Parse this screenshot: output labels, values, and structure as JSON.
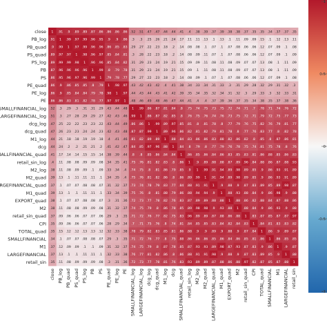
{
  "chart_data": {
    "type": "heatmap",
    "variables": [
      "close",
      "PB_log",
      "PB_quad",
      "PS_quad",
      "PS_log",
      "PB",
      "PS",
      "PE_quad",
      "PE_log",
      "PE",
      "SMALLFINANCIAL_log",
      "LARGEFINANCIAL_log",
      "dcg_log",
      "dcg_quad",
      "M1_log",
      "dcg",
      "SMALLFINANCIAL_quad",
      "retail_sin_log",
      "M2_log",
      "M2_quad",
      "LARGEFINANCIAL_quad",
      "M1_quad",
      "EXPORT_quad",
      "M2",
      "retail_sin_quad",
      "CPI",
      "TOTAL_quad",
      "SMALLFINANCIAL",
      "M1",
      "LARGEFINANCIAL",
      "retail_sin"
    ],
    "row_labels": [
      "close",
      "PB_log",
      "PB_quad",
      "PS_quad",
      "PS_log",
      "PB",
      "PS",
      "PE_quad",
      "PE_log",
      "PE",
      "SMALLFINANCIAL_log",
      "LARGEFINANCIAL_log",
      "dcg_log",
      "dcg_quad",
      "M1_log",
      "dcg",
      "SMALLFINANCIAL_quad",
      "retail_sin_log",
      "M2_log",
      "M2_quad",
      "LARGEFINANCIAL_quad",
      "M1_quad",
      "EXPORT_quad",
      "M2",
      "retail_sin_quad",
      "CPI",
      "TOTAL_quad",
      "SMALLFINANCIAL",
      "M1",
      "LARGEFINANCIAL",
      "retail_sin"
    ],
    "col_labels": [
      "close",
      "PB_log",
      "PB_quad",
      "PS_quad",
      "PS_log",
      "PB",
      "PS",
      "PE_quad",
      "PE_log",
      "PE",
      "SMALLFINANCIAL_log",
      "LARGEFINANCIAL_log",
      "dcg_log",
      "dcg_quad",
      "M1_log",
      "dcg",
      "SMALLFINANCIAL_quad",
      "retail_sin_log",
      "M2_log",
      "M2_quad",
      "LARGEFINANCIAL_quad",
      "M1_quad",
      "EXPORT_quad",
      "M2",
      "retail_sin_quad",
      "CPI",
      "TOTAL_quad",
      "SMALLFINANCIAL",
      "M1",
      "LARGEFINANCIAL",
      "retail_sin"
    ],
    "value_range": [
      -1,
      1
    ],
    "colormap": {
      "low": "#2166ac",
      "mid": "#f7f7f7",
      "high": "#b2182b"
    },
    "colorbar_ticks": [
      "1",
      "0.5",
      "0",
      "-0.5",
      "-1"
    ],
    "annotations": true,
    "values": [
      [
        1,
        0.91,
        0.9,
        0.89,
        0.89,
        0.87,
        0.86,
        0.86,
        0.86,
        0.86,
        0.52,
        0.51,
        0.47,
        0.47,
        0.44,
        0.44,
        0.41,
        0.4,
        0.38,
        0.39,
        0.37,
        0.39,
        0.38,
        0.38,
        0.37,
        0.35,
        0.35,
        0.34,
        0.37,
        0.37,
        0.35
      ],
      [
        0.91,
        1,
        0.99,
        0.97,
        0.99,
        0.96,
        0.95,
        0.9,
        0.9,
        0.86,
        0.3,
        0.3,
        0.25,
        0.26,
        0.21,
        0.24,
        0.17,
        0.11,
        0.11,
        0.13,
        0.1,
        0.13,
        0.1,
        0.11,
        0.09,
        0.09,
        0.15,
        0.1,
        0.12,
        0.13,
        0.11
      ],
      [
        0.9,
        0.99,
        1,
        0.97,
        0.99,
        0.96,
        0.96,
        0.86,
        0.85,
        0.83,
        0.29,
        0.27,
        0.22,
        0.23,
        0.18,
        0.2,
        0.14,
        0.08,
        0.08,
        0.1,
        0.07,
        0.1,
        0.07,
        0.08,
        0.06,
        0.06,
        0.12,
        0.07,
        0.09,
        0.1,
        0.08
      ],
      [
        0.89,
        0.97,
        0.97,
        1,
        0.98,
        0.96,
        0.97,
        0.85,
        0.84,
        0.81,
        0.3,
        0.28,
        0.22,
        0.23,
        0.18,
        0.2,
        0.14,
        0.08,
        0.09,
        0.11,
        0.07,
        0.1,
        0.07,
        0.08,
        0.06,
        0.06,
        0.12,
        0.07,
        0.09,
        0.1,
        0.09
      ],
      [
        0.89,
        0.99,
        0.99,
        0.98,
        1,
        0.96,
        0.96,
        0.85,
        0.84,
        0.82,
        0.31,
        0.29,
        0.23,
        0.24,
        0.19,
        0.21,
        0.15,
        0.09,
        0.09,
        0.11,
        0.08,
        0.11,
        0.08,
        0.09,
        0.07,
        0.07,
        0.13,
        0.08,
        0.1,
        0.11,
        0.09
      ],
      [
        0.87,
        0.96,
        0.96,
        0.96,
        0.96,
        1,
        0.99,
        0.8,
        0.79,
        0.78,
        0.31,
        0.29,
        0.23,
        0.24,
        0.19,
        0.21,
        0.15,
        0.09,
        0.1,
        0.11,
        0.08,
        0.11,
        0.08,
        0.09,
        0.07,
        0.07,
        0.13,
        0.08,
        0.1,
        0.11,
        0.09
      ],
      [
        0.86,
        0.95,
        0.96,
        0.97,
        0.96,
        0.99,
        1,
        0.79,
        0.78,
        0.77,
        0.29,
        0.27,
        0.22,
        0.23,
        0.18,
        0.2,
        0.14,
        0.08,
        0.09,
        0.1,
        0.07,
        0.1,
        0.07,
        0.08,
        0.06,
        0.06,
        0.12,
        0.07,
        0.09,
        0.1,
        0.08
      ],
      [
        0.86,
        0.9,
        0.86,
        0.85,
        0.85,
        0.8,
        0.79,
        1,
        0.98,
        0.97,
        0.43,
        0.42,
        0.43,
        0.42,
        0.4,
        0.41,
        0.38,
        0.34,
        0.33,
        0.34,
        0.31,
        0.33,
        0.3,
        0.31,
        0.29,
        0.28,
        0.32,
        0.29,
        0.31,
        0.32,
        0.3
      ],
      [
        0.86,
        0.9,
        0.85,
        0.84,
        0.84,
        0.79,
        0.78,
        0.98,
        1,
        0.97,
        0.44,
        0.43,
        0.44,
        0.43,
        0.41,
        0.42,
        0.39,
        0.35,
        0.34,
        0.35,
        0.32,
        0.34,
        0.31,
        0.32,
        0.3,
        0.29,
        0.33,
        0.3,
        0.32,
        0.33,
        0.31
      ],
      [
        0.86,
        0.86,
        0.83,
        0.81,
        0.82,
        0.78,
        0.77,
        0.97,
        0.97,
        1,
        0.48,
        0.46,
        0.49,
        0.48,
        0.46,
        0.47,
        0.44,
        0.41,
        0.4,
        0.4,
        0.37,
        0.39,
        0.36,
        0.37,
        0.35,
        0.34,
        0.38,
        0.35,
        0.37,
        0.38,
        0.36
      ],
      [
        0.52,
        0.3,
        0.29,
        0.3,
        0.31,
        0.31,
        0.29,
        0.43,
        0.44,
        0.48,
        1,
        0.99,
        0.86,
        0.87,
        0.81,
        0.84,
        0.8,
        0.75,
        0.74,
        0.75,
        0.73,
        0.75,
        0.72,
        0.74,
        0.71,
        0.7,
        0.78,
        0.71,
        0.74,
        0.76,
        0.72
      ],
      [
        0.51,
        0.3,
        0.27,
        0.28,
        0.29,
        0.29,
        0.27,
        0.42,
        0.43,
        0.46,
        0.99,
        1,
        0.86,
        0.87,
        0.82,
        0.85,
        0.8,
        0.76,
        0.75,
        0.76,
        0.74,
        0.76,
        0.73,
        0.75,
        0.72,
        0.71,
        0.79,
        0.72,
        0.75,
        0.77,
        0.73
      ],
      [
        0.47,
        0.25,
        0.22,
        0.22,
        0.23,
        0.23,
        0.22,
        0.43,
        0.44,
        0.49,
        0.86,
        0.86,
        1,
        0.99,
        0.89,
        0.97,
        0.85,
        0.81,
        0.8,
        0.81,
        0.78,
        0.8,
        0.77,
        0.79,
        0.76,
        0.75,
        0.82,
        0.76,
        0.79,
        0.81,
        0.77
      ],
      [
        0.47,
        0.26,
        0.23,
        0.23,
        0.24,
        0.24,
        0.23,
        0.42,
        0.43,
        0.48,
        0.87,
        0.87,
        0.99,
        1,
        0.89,
        0.96,
        0.86,
        0.82,
        0.81,
        0.82,
        0.79,
        0.81,
        0.78,
        0.8,
        0.77,
        0.76,
        0.83,
        0.77,
        0.8,
        0.82,
        0.78
      ],
      [
        0.44,
        0.21,
        0.18,
        0.18,
        0.19,
        0.19,
        0.18,
        0.4,
        0.41,
        0.46,
        0.81,
        0.82,
        0.89,
        0.89,
        1,
        0.88,
        0.84,
        0.83,
        0.86,
        0.86,
        0.83,
        0.88,
        0.82,
        0.86,
        0.82,
        0.8,
        0.85,
        0.8,
        0.87,
        0.86,
        0.81
      ],
      [
        0.44,
        0.24,
        0.2,
        0.2,
        0.21,
        0.21,
        0.2,
        0.41,
        0.42,
        0.47,
        0.84,
        0.85,
        0.97,
        0.96,
        0.88,
        1,
        0.84,
        0.8,
        0.79,
        0.8,
        0.77,
        0.79,
        0.76,
        0.78,
        0.75,
        0.74,
        0.81,
        0.75,
        0.78,
        0.8,
        0.76
      ],
      [
        0.41,
        0.17,
        0.14,
        0.14,
        0.15,
        0.15,
        0.14,
        0.38,
        0.39,
        0.44,
        0.8,
        0.8,
        0.85,
        0.86,
        0.84,
        0.84,
        1,
        0.86,
        0.85,
        0.86,
        0.84,
        0.86,
        0.83,
        0.85,
        0.83,
        0.81,
        0.86,
        0.88,
        0.85,
        0.86,
        0.83
      ],
      [
        0.4,
        0.11,
        0.08,
        0.08,
        0.09,
        0.09,
        0.08,
        0.34,
        0.35,
        0.41,
        0.75,
        0.76,
        0.81,
        0.82,
        0.83,
        0.8,
        0.86,
        1,
        0.9,
        0.89,
        0.88,
        0.88,
        0.87,
        0.89,
        0.96,
        0.84,
        0.88,
        0.86,
        0.87,
        0.88,
        0.93
      ],
      [
        0.38,
        0.11,
        0.08,
        0.09,
        0.09,
        0.1,
        0.09,
        0.33,
        0.34,
        0.4,
        0.74,
        0.75,
        0.8,
        0.81,
        0.86,
        0.79,
        0.85,
        0.9,
        1,
        0.99,
        0.91,
        0.94,
        0.89,
        0.98,
        0.89,
        0.85,
        0.9,
        0.86,
        0.93,
        0.91,
        0.89
      ],
      [
        0.39,
        0.13,
        0.1,
        0.11,
        0.11,
        0.11,
        0.1,
        0.34,
        0.35,
        0.4,
        0.75,
        0.76,
        0.81,
        0.82,
        0.86,
        0.8,
        0.86,
        0.89,
        0.99,
        1,
        0.91,
        0.94,
        0.89,
        0.98,
        0.89,
        0.85,
        0.9,
        0.86,
        0.93,
        0.91,
        0.89
      ],
      [
        0.37,
        0.1,
        0.07,
        0.07,
        0.08,
        0.08,
        0.07,
        0.31,
        0.32,
        0.37,
        0.73,
        0.74,
        0.78,
        0.79,
        0.83,
        0.77,
        0.84,
        0.88,
        0.91,
        0.91,
        1,
        0.9,
        0.88,
        0.9,
        0.87,
        0.83,
        0.89,
        0.85,
        0.89,
        0.98,
        0.87
      ],
      [
        0.39,
        0.13,
        0.1,
        0.1,
        0.11,
        0.11,
        0.1,
        0.33,
        0.34,
        0.39,
        0.75,
        0.76,
        0.8,
        0.81,
        0.88,
        0.79,
        0.86,
        0.88,
        0.94,
        0.94,
        0.9,
        1,
        0.88,
        0.93,
        0.88,
        0.84,
        0.9,
        0.86,
        0.98,
        0.9,
        0.88
      ],
      [
        0.38,
        0.1,
        0.07,
        0.07,
        0.08,
        0.08,
        0.07,
        0.3,
        0.31,
        0.36,
        0.72,
        0.73,
        0.77,
        0.78,
        0.82,
        0.76,
        0.83,
        0.87,
        0.89,
        0.89,
        0.88,
        0.88,
        1,
        0.88,
        0.86,
        0.82,
        0.88,
        0.84,
        0.87,
        0.88,
        0.86
      ],
      [
        0.38,
        0.11,
        0.08,
        0.08,
        0.09,
        0.09,
        0.08,
        0.31,
        0.32,
        0.37,
        0.74,
        0.75,
        0.79,
        0.8,
        0.86,
        0.78,
        0.85,
        0.89,
        0.98,
        0.98,
        0.9,
        0.93,
        0.88,
        1,
        0.88,
        0.84,
        0.9,
        0.86,
        0.93,
        0.9,
        0.88
      ],
      [
        0.37,
        0.09,
        0.06,
        0.06,
        0.07,
        0.07,
        0.06,
        0.29,
        0.3,
        0.35,
        0.71,
        0.72,
        0.76,
        0.77,
        0.82,
        0.75,
        0.83,
        0.96,
        0.89,
        0.89,
        0.87,
        0.88,
        0.86,
        0.88,
        1,
        0.83,
        0.87,
        0.85,
        0.87,
        0.87,
        0.97
      ],
      [
        0.35,
        0.09,
        0.06,
        0.06,
        0.07,
        0.07,
        0.06,
        0.28,
        0.29,
        0.34,
        0.7,
        0.71,
        0.75,
        0.76,
        0.8,
        0.74,
        0.81,
        0.84,
        0.85,
        0.85,
        0.83,
        0.84,
        0.82,
        0.84,
        0.83,
        1,
        0.84,
        0.81,
        0.83,
        0.83,
        0.82
      ],
      [
        0.35,
        0.15,
        0.12,
        0.12,
        0.13,
        0.13,
        0.12,
        0.32,
        0.33,
        0.38,
        0.78,
        0.79,
        0.82,
        0.83,
        0.85,
        0.81,
        0.86,
        0.88,
        0.9,
        0.9,
        0.89,
        0.9,
        0.88,
        0.9,
        0.87,
        0.84,
        1,
        0.86,
        0.9,
        0.89,
        0.87
      ],
      [
        0.34,
        0.1,
        0.07,
        0.07,
        0.08,
        0.08,
        0.07,
        0.29,
        0.3,
        0.35,
        0.71,
        0.72,
        0.76,
        0.77,
        0.8,
        0.75,
        0.88,
        0.86,
        0.86,
        0.86,
        0.85,
        0.86,
        0.84,
        0.86,
        0.85,
        0.81,
        0.86,
        1,
        0.86,
        0.85,
        0.85
      ],
      [
        0.37,
        0.12,
        0.09,
        0.09,
        0.1,
        0.1,
        0.09,
        0.31,
        0.32,
        0.37,
        0.74,
        0.75,
        0.79,
        0.8,
        0.87,
        0.78,
        0.85,
        0.87,
        0.93,
        0.93,
        0.89,
        0.98,
        0.87,
        0.93,
        0.87,
        0.83,
        0.9,
        0.86,
        1,
        0.9,
        0.87
      ],
      [
        0.37,
        0.13,
        0.1,
        0.1,
        0.11,
        0.11,
        0.1,
        0.32,
        0.33,
        0.38,
        0.76,
        0.77,
        0.81,
        0.82,
        0.86,
        0.8,
        0.86,
        0.88,
        0.91,
        0.91,
        0.98,
        0.9,
        0.88,
        0.9,
        0.87,
        0.83,
        0.89,
        0.85,
        0.9,
        1,
        0.88
      ],
      [
        0.35,
        0.11,
        0.08,
        0.09,
        0.09,
        0.09,
        0.08,
        0.3,
        0.31,
        0.36,
        0.72,
        0.73,
        0.77,
        0.78,
        0.81,
        0.76,
        0.83,
        0.93,
        0.89,
        0.89,
        0.87,
        0.88,
        0.86,
        0.88,
        0.97,
        0.82,
        0.87,
        0.85,
        0.87,
        0.88,
        1
      ]
    ]
  }
}
